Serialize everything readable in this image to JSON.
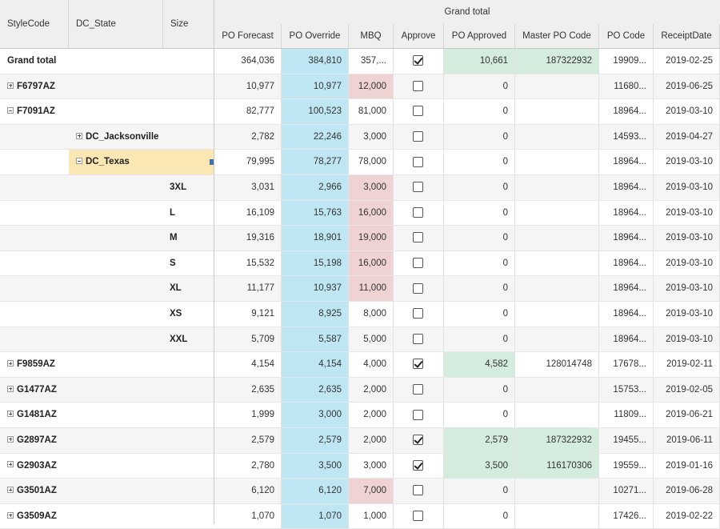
{
  "left_headers": [
    "StyleCode",
    "DC_State",
    "Size"
  ],
  "group_header": "Grand total",
  "columns": [
    "PO Forecast",
    "PO Override",
    "MBQ",
    "Approve",
    "PO Approved",
    "Master PO Code",
    "PO Code",
    "ReceiptDate"
  ],
  "rows": [
    {
      "level": 0,
      "label": "Grand total",
      "toggle": "none",
      "selected": false,
      "values": [
        "364,036",
        "384,810",
        "357,...",
        "",
        "10,661",
        "187322932",
        "19909...",
        "2019-02-25"
      ],
      "approved": true,
      "mbq_flag": false,
      "po_approved_flag": true,
      "master_flag": true
    },
    {
      "level": 0,
      "label": "F6797AZ",
      "toggle": "plus",
      "selected": false,
      "values": [
        "10,977",
        "10,977",
        "12,000",
        "",
        "0",
        "",
        "11680...",
        "2019-06-25"
      ],
      "approved": false,
      "mbq_flag": true,
      "po_approved_flag": false,
      "master_flag": false
    },
    {
      "level": 0,
      "label": "F7091AZ",
      "toggle": "minus",
      "selected": false,
      "values": [
        "82,777",
        "100,523",
        "81,000",
        "",
        "0",
        "",
        "18964...",
        "2019-03-10"
      ],
      "approved": false,
      "mbq_flag": false,
      "po_approved_flag": false,
      "master_flag": false
    },
    {
      "level": 1,
      "label": "DC_Jacksonville",
      "toggle": "plus",
      "selected": false,
      "values": [
        "2,782",
        "22,246",
        "3,000",
        "",
        "0",
        "",
        "14593...",
        "2019-04-27"
      ],
      "approved": false,
      "mbq_flag": false,
      "po_approved_flag": false,
      "master_flag": false
    },
    {
      "level": 1,
      "label": "DC_Texas",
      "toggle": "minus",
      "selected": true,
      "values": [
        "79,995",
        "78,277",
        "78,000",
        "",
        "0",
        "",
        "18964...",
        "2019-03-10"
      ],
      "approved": false,
      "mbq_flag": false,
      "po_approved_flag": false,
      "master_flag": false
    },
    {
      "level": 2,
      "label": "3XL",
      "toggle": "none",
      "selected": false,
      "values": [
        "3,031",
        "2,966",
        "3,000",
        "",
        "0",
        "",
        "18964...",
        "2019-03-10"
      ],
      "approved": false,
      "mbq_flag": true,
      "po_approved_flag": false,
      "master_flag": false
    },
    {
      "level": 2,
      "label": "L",
      "toggle": "none",
      "selected": false,
      "values": [
        "16,109",
        "15,763",
        "16,000",
        "",
        "0",
        "",
        "18964...",
        "2019-03-10"
      ],
      "approved": false,
      "mbq_flag": true,
      "po_approved_flag": false,
      "master_flag": false
    },
    {
      "level": 2,
      "label": "M",
      "toggle": "none",
      "selected": false,
      "values": [
        "19,316",
        "18,901",
        "19,000",
        "",
        "0",
        "",
        "18964...",
        "2019-03-10"
      ],
      "approved": false,
      "mbq_flag": true,
      "po_approved_flag": false,
      "master_flag": false
    },
    {
      "level": 2,
      "label": "S",
      "toggle": "none",
      "selected": false,
      "values": [
        "15,532",
        "15,198",
        "16,000",
        "",
        "0",
        "",
        "18964...",
        "2019-03-10"
      ],
      "approved": false,
      "mbq_flag": true,
      "po_approved_flag": false,
      "master_flag": false
    },
    {
      "level": 2,
      "label": "XL",
      "toggle": "none",
      "selected": false,
      "values": [
        "11,177",
        "10,937",
        "11,000",
        "",
        "0",
        "",
        "18964...",
        "2019-03-10"
      ],
      "approved": false,
      "mbq_flag": true,
      "po_approved_flag": false,
      "master_flag": false
    },
    {
      "level": 2,
      "label": "XS",
      "toggle": "none",
      "selected": false,
      "values": [
        "9,121",
        "8,925",
        "8,000",
        "",
        "0",
        "",
        "18964...",
        "2019-03-10"
      ],
      "approved": false,
      "mbq_flag": false,
      "po_approved_flag": false,
      "master_flag": false
    },
    {
      "level": 2,
      "label": "XXL",
      "toggle": "none",
      "selected": false,
      "values": [
        "5,709",
        "5,587",
        "5,000",
        "",
        "0",
        "",
        "18964...",
        "2019-03-10"
      ],
      "approved": false,
      "mbq_flag": false,
      "po_approved_flag": false,
      "master_flag": false
    },
    {
      "level": 0,
      "label": "F9859AZ",
      "toggle": "plus",
      "selected": false,
      "values": [
        "4,154",
        "4,154",
        "4,000",
        "",
        "4,582",
        "128014748",
        "17678...",
        "2019-02-11"
      ],
      "approved": true,
      "mbq_flag": false,
      "po_approved_flag": true,
      "master_flag": false
    },
    {
      "level": 0,
      "label": "G1477AZ",
      "toggle": "plus",
      "selected": false,
      "values": [
        "2,635",
        "2,635",
        "2,000",
        "",
        "0",
        "",
        "15753...",
        "2019-02-05"
      ],
      "approved": false,
      "mbq_flag": false,
      "po_approved_flag": false,
      "master_flag": false
    },
    {
      "level": 0,
      "label": "G1481AZ",
      "toggle": "plus",
      "selected": false,
      "values": [
        "1,999",
        "3,000",
        "2,000",
        "",
        "0",
        "",
        "11809...",
        "2019-06-21"
      ],
      "approved": false,
      "mbq_flag": false,
      "po_approved_flag": false,
      "master_flag": false
    },
    {
      "level": 0,
      "label": "G2897AZ",
      "toggle": "plus",
      "selected": false,
      "values": [
        "2,579",
        "2,579",
        "2,000",
        "",
        "2,579",
        "187322932",
        "19455...",
        "2019-06-11"
      ],
      "approved": true,
      "mbq_flag": false,
      "po_approved_flag": true,
      "master_flag": true
    },
    {
      "level": 0,
      "label": "G2903AZ",
      "toggle": "plus",
      "selected": false,
      "values": [
        "2,780",
        "3,500",
        "3,000",
        "",
        "3,500",
        "116170306",
        "19559...",
        "2019-01-16"
      ],
      "approved": true,
      "mbq_flag": false,
      "po_approved_flag": true,
      "master_flag": true
    },
    {
      "level": 0,
      "label": "G3501AZ",
      "toggle": "plus",
      "selected": false,
      "values": [
        "6,120",
        "6,120",
        "7,000",
        "",
        "0",
        "",
        "10271...",
        "2019-06-28"
      ],
      "approved": false,
      "mbq_flag": true,
      "po_approved_flag": false,
      "master_flag": false
    },
    {
      "level": 0,
      "label": "G3509AZ",
      "toggle": "plus",
      "selected": false,
      "values": [
        "1,070",
        "1,070",
        "1,000",
        "",
        "0",
        "",
        "17426...",
        "2019-02-22"
      ],
      "approved": false,
      "mbq_flag": false,
      "po_approved_flag": false,
      "master_flag": false
    }
  ]
}
